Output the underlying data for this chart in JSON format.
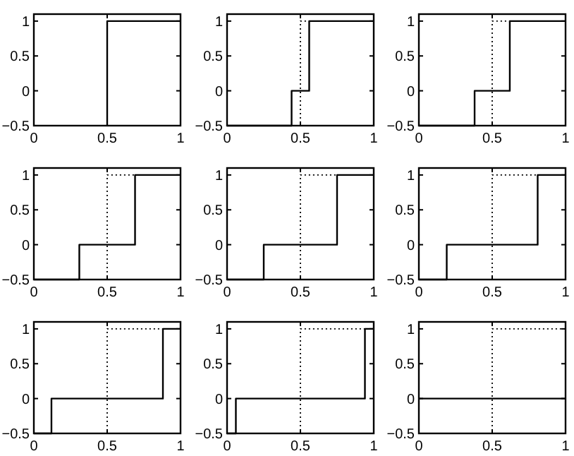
{
  "chart_data": [
    {
      "type": "line",
      "xlim": [
        0,
        1
      ],
      "ylim": [
        -0.5,
        1.1
      ],
      "xticks": [
        0,
        0.5,
        1
      ],
      "yticks": [
        -0.5,
        0,
        0.5,
        1
      ],
      "series": [
        {
          "color": "#000000",
          "line_style": "solid",
          "x": [
            0.5,
            0.5,
            1
          ],
          "values": [
            -0.5,
            1,
            1
          ]
        }
      ]
    },
    {
      "type": "step",
      "xlim": [
        0,
        1
      ],
      "ylim": [
        -0.5,
        1.1
      ],
      "xticks": [
        0,
        0.5,
        1
      ],
      "yticks": [
        -0.5,
        0,
        0.5,
        1
      ],
      "series": [
        {
          "color": "#000000",
          "line_style": "dotted",
          "x": [
            0,
            0.5,
            1
          ],
          "values": [
            -0.5,
            1,
            1
          ]
        },
        {
          "color": "#000000",
          "line_style": "solid",
          "x": [
            0,
            0.44,
            0.56,
            1
          ],
          "values": [
            -0.5,
            0,
            1,
            1
          ]
        }
      ]
    },
    {
      "type": "step",
      "xlim": [
        0,
        1
      ],
      "ylim": [
        -0.5,
        1.1
      ],
      "xticks": [
        0,
        0.5,
        1
      ],
      "yticks": [
        -0.5,
        0,
        0.5,
        1
      ],
      "series": [
        {
          "color": "#000000",
          "line_style": "dotted",
          "x": [
            0,
            0.5,
            1
          ],
          "values": [
            -0.5,
            1,
            1
          ]
        },
        {
          "color": "#000000",
          "line_style": "solid",
          "x": [
            0,
            0.38,
            0.62,
            1
          ],
          "values": [
            -0.5,
            0,
            1,
            1
          ]
        }
      ]
    },
    {
      "type": "step",
      "xlim": [
        0,
        1
      ],
      "ylim": [
        -0.5,
        1.1
      ],
      "xticks": [
        0,
        0.5,
        1
      ],
      "yticks": [
        -0.5,
        0,
        0.5,
        1
      ],
      "series": [
        {
          "color": "#000000",
          "line_style": "dotted",
          "x": [
            0,
            0.5,
            1
          ],
          "values": [
            -0.5,
            1,
            1
          ]
        },
        {
          "color": "#000000",
          "line_style": "solid",
          "x": [
            0,
            0.31,
            0.69,
            1
          ],
          "values": [
            -0.5,
            0,
            1,
            1
          ]
        }
      ]
    },
    {
      "type": "step",
      "xlim": [
        0,
        1
      ],
      "ylim": [
        -0.5,
        1.1
      ],
      "xticks": [
        0,
        0.5,
        1
      ],
      "yticks": [
        -0.5,
        0,
        0.5,
        1
      ],
      "series": [
        {
          "color": "#000000",
          "line_style": "dotted",
          "x": [
            0,
            0.5,
            1
          ],
          "values": [
            -0.5,
            1,
            1
          ]
        },
        {
          "color": "#000000",
          "line_style": "solid",
          "x": [
            0,
            0.25,
            0.75,
            1
          ],
          "values": [
            -0.5,
            0,
            1,
            1
          ]
        }
      ]
    },
    {
      "type": "step",
      "xlim": [
        0,
        1
      ],
      "ylim": [
        -0.5,
        1.1
      ],
      "xticks": [
        0,
        0.5,
        1
      ],
      "yticks": [
        -0.5,
        0,
        0.5,
        1
      ],
      "series": [
        {
          "color": "#000000",
          "line_style": "dotted",
          "x": [
            0,
            0.5,
            1
          ],
          "values": [
            -0.5,
            1,
            1
          ]
        },
        {
          "color": "#000000",
          "line_style": "solid",
          "x": [
            0,
            0.19,
            0.81,
            1
          ],
          "values": [
            -0.5,
            0,
            1,
            1
          ]
        }
      ]
    },
    {
      "type": "step",
      "xlim": [
        0,
        1
      ],
      "ylim": [
        -0.5,
        1.1
      ],
      "xticks": [
        0,
        0.5,
        1
      ],
      "yticks": [
        -0.5,
        0,
        0.5,
        1
      ],
      "series": [
        {
          "color": "#000000",
          "line_style": "dotted",
          "x": [
            0,
            0.5,
            1
          ],
          "values": [
            -0.5,
            1,
            1
          ]
        },
        {
          "color": "#000000",
          "line_style": "solid",
          "x": [
            0,
            0.12,
            0.88,
            1
          ],
          "values": [
            -0.5,
            0,
            1,
            1
          ]
        }
      ]
    },
    {
      "type": "step",
      "xlim": [
        0,
        1
      ],
      "ylim": [
        -0.5,
        1.1
      ],
      "xticks": [
        0,
        0.5,
        1
      ],
      "yticks": [
        -0.5,
        0,
        0.5,
        1
      ],
      "series": [
        {
          "color": "#000000",
          "line_style": "dotted",
          "x": [
            0,
            0.5,
            1
          ],
          "values": [
            -0.5,
            1,
            1
          ]
        },
        {
          "color": "#000000",
          "line_style": "solid",
          "x": [
            0,
            0.06,
            0.94,
            1
          ],
          "values": [
            -0.5,
            0,
            1,
            1
          ]
        }
      ]
    },
    {
      "type": "step",
      "xlim": [
        0,
        1
      ],
      "ylim": [
        -0.5,
        1.1
      ],
      "xticks": [
        0,
        0.5,
        1
      ],
      "yticks": [
        -0.5,
        0,
        0.5,
        1
      ],
      "series": [
        {
          "color": "#000000",
          "line_style": "dotted",
          "x": [
            0,
            0.5,
            1
          ],
          "values": [
            -0.5,
            1,
            1
          ]
        },
        {
          "color": "#000000",
          "line_style": "solid",
          "x": [
            0,
            1
          ],
          "values": [
            0,
            0
          ]
        }
      ]
    }
  ]
}
